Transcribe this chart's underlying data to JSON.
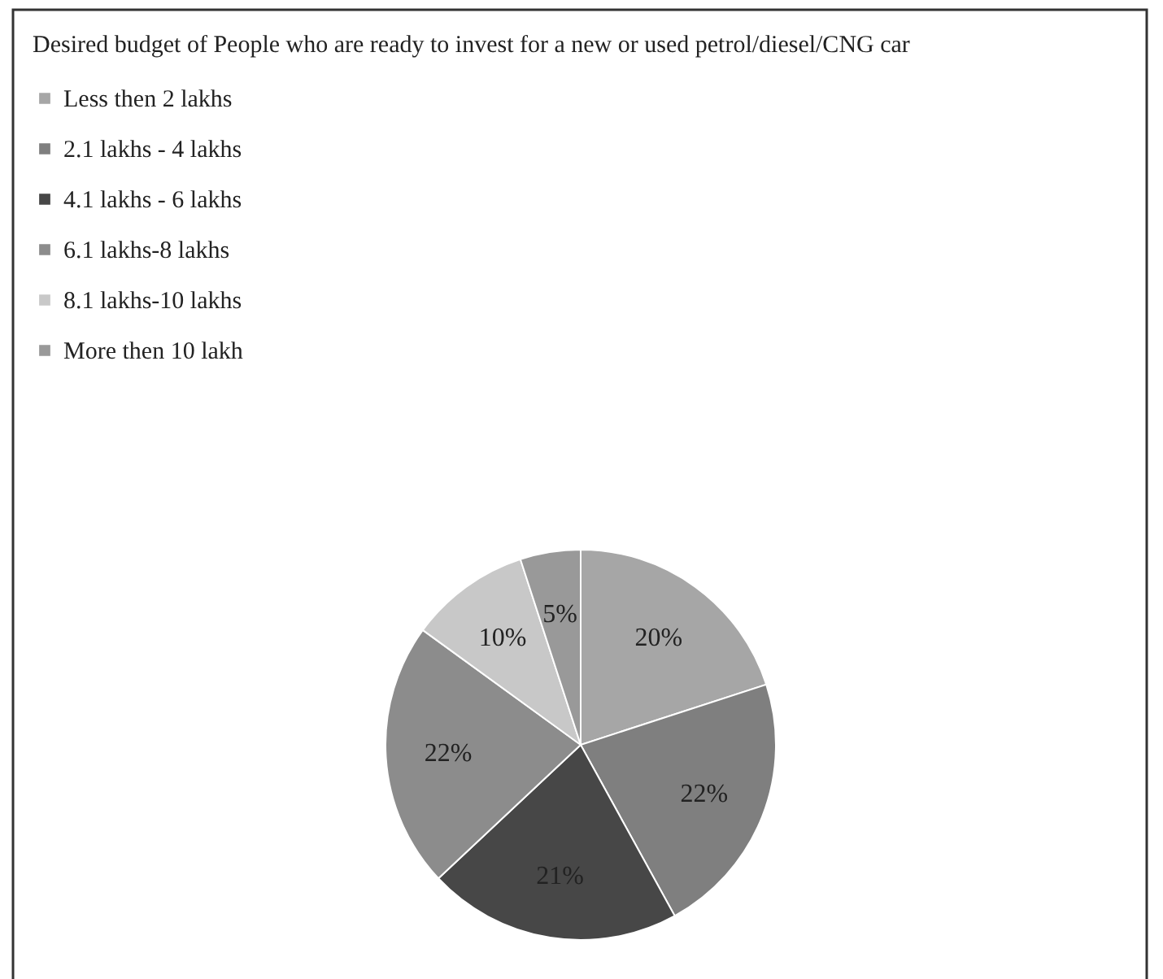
{
  "chart_data": {
    "type": "pie",
    "legend_title": "Desired budget of People who are ready to invest for a new or used petrol/diesel/CNG car",
    "categories": [
      "Less then 2 lakhs",
      "2.1 lakhs - 4 lakhs",
      "4.1 lakhs - 6 lakhs",
      "6.1 lakhs-8 lakhs",
      "8.1 lakhs-10 lakhs",
      "More then 10 lakh"
    ],
    "values": [
      20,
      22,
      21,
      22,
      10,
      5
    ],
    "colors": [
      "#a6a6a6",
      "#7f7f7f",
      "#474747",
      "#8c8c8c",
      "#c8c8c8",
      "#999999"
    ],
    "value_labels": [
      "20%",
      "22%",
      "21%",
      "22%",
      "10%",
      "5%"
    ],
    "legend": "top left"
  }
}
